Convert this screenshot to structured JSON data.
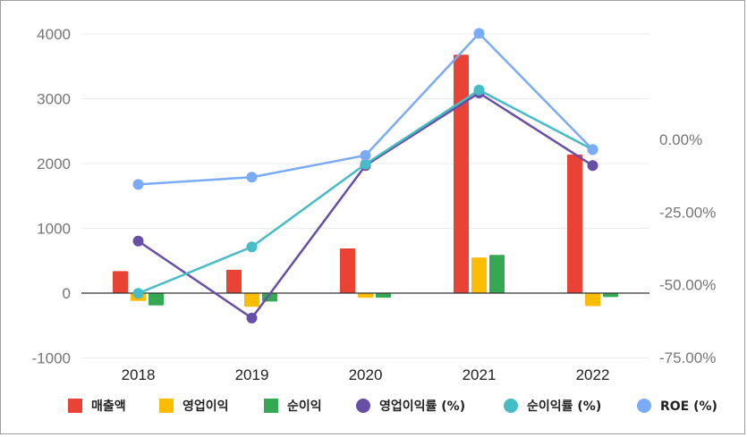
{
  "chart_data": {
    "type": "bar",
    "categories": [
      "2018",
      "2019",
      "2020",
      "2021",
      "2022"
    ],
    "left_axis": {
      "ylim": [
        -1000,
        4000
      ],
      "ticks": [
        "4000",
        "3000",
        "2000",
        "1000",
        "0",
        "-1000"
      ]
    },
    "right_axis": {
      "ticks": [
        "0.00%",
        "-25.00%",
        "-50.00%",
        "-75.00%"
      ]
    },
    "bar_series": [
      {
        "name": "매출액",
        "color": "#ea4335",
        "values": [
          340,
          360,
          690,
          3680,
          2140
        ]
      },
      {
        "name": "영업이익",
        "color": "#fbbc04",
        "values": [
          -120,
          -210,
          -70,
          550,
          -200
        ]
      },
      {
        "name": "순이익",
        "color": "#34a853",
        "values": [
          -190,
          -130,
          -70,
          590,
          -60
        ]
      }
    ],
    "line_series": [
      {
        "name": "영업이익률 (%)",
        "color": "#674ea7",
        "values": [
          -35.0,
          -61.5,
          -9.0,
          16.0,
          -9.0
        ]
      },
      {
        "name": "순이익률 (%)",
        "color": "#46bdc6",
        "values": [
          -53.0,
          -37.0,
          -8.5,
          17.0,
          -3.5
        ]
      },
      {
        "name": "ROE (%)",
        "color": "#7baaf7",
        "values": [
          -15.5,
          -13.0,
          -5.5,
          36.5,
          -3.5
        ]
      }
    ],
    "legend_position": "bottom",
    "grid": true
  }
}
